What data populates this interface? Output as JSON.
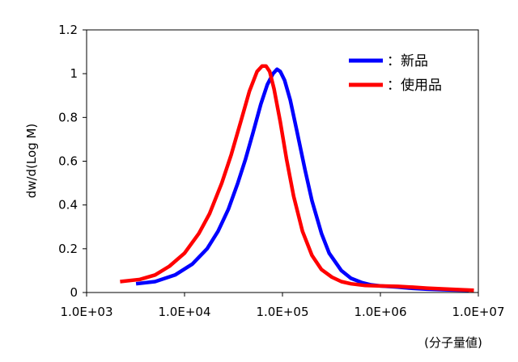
{
  "chart_data": {
    "type": "line",
    "title": "",
    "xlabel": "(分子量値)",
    "ylabel": "dw/d(Log M)",
    "x_scale": "log",
    "xlim": [
      1000,
      10000000
    ],
    "ylim": [
      0,
      1.2
    ],
    "x_ticks": [
      1000,
      10000,
      100000,
      1000000,
      10000000
    ],
    "x_tick_labels": [
      "1.0E+03",
      "1.0E+04",
      "1.0E+05",
      "1.0E+06",
      "1.0E+07"
    ],
    "y_ticks": [
      0,
      0.2,
      0.4,
      0.6,
      0.8,
      1,
      1.2
    ],
    "y_tick_labels": [
      "0",
      "0.2",
      "0.4",
      "0.6",
      "0.8",
      "1",
      "1.2"
    ],
    "grid": false,
    "legend_position": "top-right",
    "series": [
      {
        "name": "：新品",
        "color": "#0000ff",
        "x": [
          3200,
          5000,
          8000,
          12000,
          17000,
          22000,
          28000,
          35000,
          42000,
          50000,
          60000,
          70000,
          80000,
          88000,
          95000,
          105000,
          120000,
          140000,
          170000,
          200000,
          250000,
          300000,
          400000,
          500000,
          650000,
          800000,
          1000000,
          1500000,
          2000000,
          3000000,
          5000000,
          8000000
        ],
        "y": [
          0.04,
          0.05,
          0.08,
          0.13,
          0.2,
          0.28,
          0.38,
          0.5,
          0.61,
          0.73,
          0.86,
          0.95,
          1.0,
          1.02,
          1.01,
          0.97,
          0.88,
          0.74,
          0.56,
          0.42,
          0.27,
          0.18,
          0.1,
          0.065,
          0.045,
          0.035,
          0.03,
          0.025,
          0.02,
          0.015,
          0.012,
          0.01
        ]
      },
      {
        "name": "：使用品",
        "color": "#ff0000",
        "x": [
          2200,
          3500,
          5000,
          7000,
          10000,
          14000,
          18000,
          24000,
          30000,
          38000,
          46000,
          55000,
          62000,
          68000,
          74000,
          82000,
          95000,
          110000,
          130000,
          160000,
          200000,
          250000,
          320000,
          400000,
          500000,
          700000,
          1000000,
          1500000,
          2000000,
          3000000,
          5000000,
          9000000
        ],
        "y": [
          0.05,
          0.06,
          0.08,
          0.12,
          0.18,
          0.27,
          0.36,
          0.5,
          0.63,
          0.79,
          0.92,
          1.01,
          1.035,
          1.035,
          1.01,
          0.93,
          0.78,
          0.61,
          0.44,
          0.28,
          0.17,
          0.105,
          0.07,
          0.05,
          0.04,
          0.032,
          0.03,
          0.028,
          0.025,
          0.02,
          0.015,
          0.01
        ]
      }
    ]
  }
}
